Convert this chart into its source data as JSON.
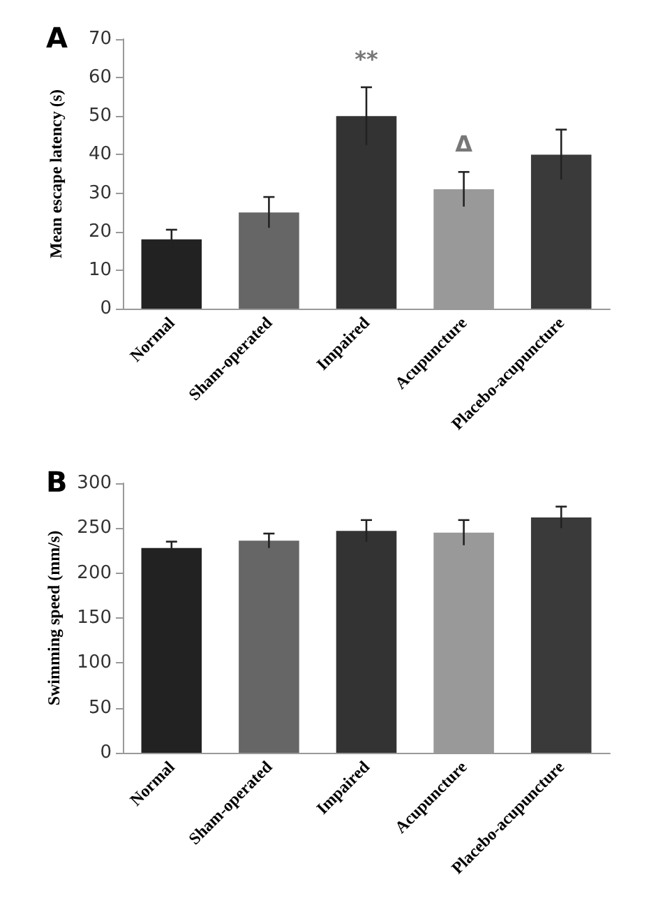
{
  "chart_data": [
    {
      "type": "bar",
      "title": "A",
      "ylabel": "Mean escape latency (s)",
      "categories": [
        "Normal",
        "Sham-operated",
        "Impaired",
        "Acupuncture",
        "Placebo-acupuncture"
      ],
      "values": [
        18,
        25,
        50,
        31,
        40
      ],
      "errors": [
        2.5,
        4,
        7.5,
        4.5,
        6.5
      ],
      "colors": [
        "#222222",
        "#666666",
        "#333333",
        "#999999",
        "#3a3a3a"
      ],
      "ylim": [
        0,
        70
      ],
      "yticks": [
        0,
        10,
        20,
        30,
        40,
        50,
        60,
        70
      ],
      "grid": false,
      "annotations": [
        {
          "text": "**",
          "x": "Impaired",
          "y": 57.5
        },
        {
          "text": "Δ",
          "x": "Acupuncture",
          "y": 35.5
        }
      ]
    },
    {
      "type": "bar",
      "title": "B",
      "ylabel": "Swimming speed (mm/s)",
      "categories": [
        "Normal",
        "Sham-operated",
        "Impaired",
        "Acupuncture",
        "Placebo-acupuncture"
      ],
      "values": [
        228,
        236,
        247,
        245,
        262
      ],
      "errors": [
        7,
        8,
        12,
        14,
        12
      ],
      "colors": [
        "#222222",
        "#666666",
        "#333333",
        "#999999",
        "#3a3a3a"
      ],
      "ylim": [
        0,
        300
      ],
      "yticks": [
        0,
        50,
        100,
        150,
        200,
        250,
        300
      ],
      "grid": false
    }
  ]
}
